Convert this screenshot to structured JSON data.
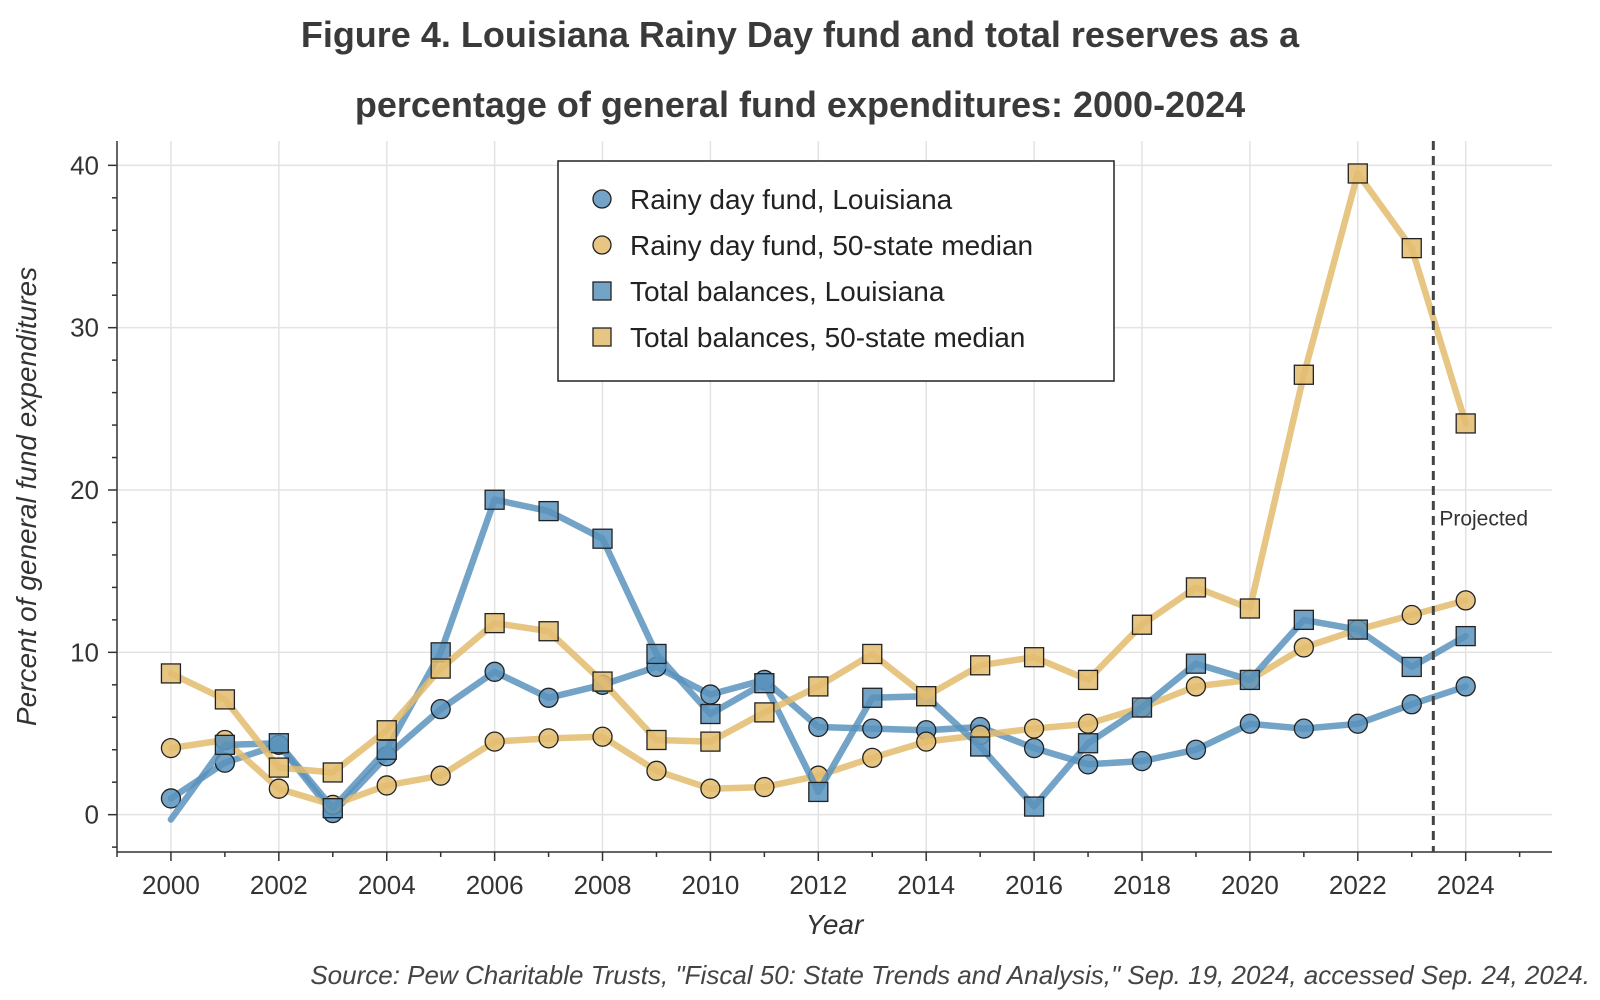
{
  "title_line1": "Figure 4. Louisiana Rainy Day fund and total reserves as a",
  "title_line2": "percentage of general fund expenditures: 2000-2024",
  "source": "Source: Pew Charitable Trusts, \"Fiscal 50: State Trends and Analysis,\" Sep. 19, 2024, accessed Sep. 24, 2024.",
  "colors": {
    "louisiana": "#5b93bc",
    "median": "#e3bc6e",
    "marker_edge": "#222222",
    "grid": "#e3e3e3",
    "vline": "#444444"
  },
  "chart_data": {
    "type": "line",
    "title": "Figure 4. Louisiana Rainy Day fund and total reserves as a percentage of general fund expenditures: 2000-2024",
    "xlabel": "Year",
    "ylabel": "Percent of general fund expenditures",
    "xlim": [
      1999,
      2025.6
    ],
    "ylim": [
      -2.3,
      41.5
    ],
    "xticks": [
      2000,
      2002,
      2004,
      2006,
      2008,
      2010,
      2012,
      2014,
      2016,
      2018,
      2020,
      2022,
      2024
    ],
    "yticks": [
      0,
      10,
      20,
      30,
      40
    ],
    "grid": true,
    "legend_position": "top-center",
    "annotation": {
      "text": "Projected",
      "x": 2023.4
    },
    "x": [
      2000,
      2001,
      2002,
      2003,
      2004,
      2005,
      2006,
      2007,
      2008,
      2009,
      2010,
      2011,
      2012,
      2013,
      2014,
      2015,
      2016,
      2017,
      2018,
      2019,
      2020,
      2021,
      2022,
      2023,
      2024
    ],
    "series": [
      {
        "name": "Rainy day fund, Louisiana",
        "marker": "circle",
        "color": "#5b93bc",
        "values": [
          1.0,
          3.2,
          4.3,
          0.1,
          3.6,
          6.5,
          8.8,
          7.2,
          8.0,
          9.1,
          7.4,
          8.3,
          5.4,
          5.3,
          5.2,
          5.4,
          4.1,
          3.1,
          3.3,
          4.0,
          5.6,
          5.3,
          5.6,
          6.8,
          7.9
        ]
      },
      {
        "name": "Rainy day fund, 50-state median",
        "marker": "circle",
        "color": "#e3bc6e",
        "values": [
          4.1,
          4.6,
          1.6,
          0.6,
          1.8,
          2.4,
          4.5,
          4.7,
          4.8,
          2.7,
          1.6,
          1.7,
          2.4,
          3.5,
          4.5,
          4.9,
          5.3,
          5.6,
          6.6,
          7.9,
          8.3,
          10.3,
          11.4,
          12.3,
          13.2
        ]
      },
      {
        "name": "Total balances, Louisiana",
        "marker": "square",
        "color": "#5b93bc",
        "values": [
          -0.3,
          4.3,
          4.4,
          0.4,
          4.0,
          10.0,
          19.4,
          18.7,
          17.0,
          9.9,
          6.2,
          8.1,
          1.4,
          7.2,
          7.3,
          4.2,
          0.5,
          4.4,
          6.6,
          9.3,
          8.3,
          12.0,
          11.4,
          9.1,
          11.0
        ]
      },
      {
        "name": "Total balances, 50-state median",
        "marker": "square",
        "color": "#e3bc6e",
        "values": [
          8.7,
          7.1,
          2.9,
          2.6,
          5.2,
          9.0,
          11.8,
          11.3,
          8.2,
          4.6,
          4.5,
          6.3,
          7.9,
          9.9,
          7.3,
          9.2,
          9.7,
          8.3,
          11.7,
          14.0,
          12.7,
          27.1,
          39.5,
          34.9,
          24.1
        ]
      }
    ]
  }
}
